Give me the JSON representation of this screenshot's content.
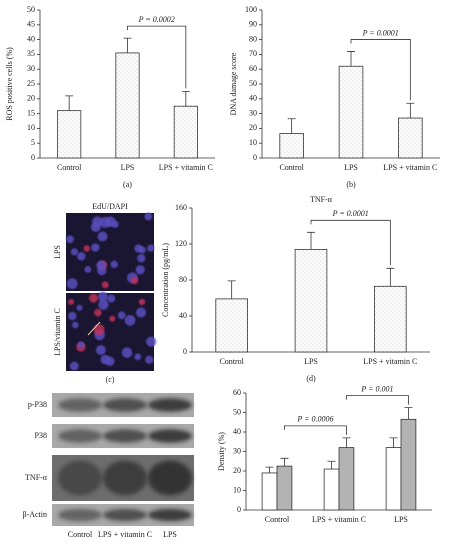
{
  "chart_data": [
    {
      "type": "bar",
      "caption": "(a)",
      "y_label": "ROS positive cells (%)",
      "categories": [
        "Control",
        "LPS",
        "LPS + vitamin C"
      ],
      "series": [
        {
          "color": "#ffffff",
          "fill_pattern": "dots",
          "values": [
            16,
            35.5,
            17.5
          ],
          "errors": [
            5,
            5,
            5
          ]
        }
      ],
      "ylim": [
        0,
        50
      ],
      "yticks": [
        0,
        5,
        10,
        15,
        20,
        25,
        30,
        35,
        40,
        45,
        50
      ],
      "annotations": [
        "P = 0.0002"
      ]
    },
    {
      "type": "bar",
      "caption": "(b)",
      "y_label": "DNA damage score",
      "categories": [
        "Control",
        "LPS",
        "LPS + vitamin C"
      ],
      "series": [
        {
          "color": "#ffffff",
          "fill_pattern": "dots",
          "values": [
            16.5,
            62,
            27
          ],
          "errors": [
            10,
            10,
            10
          ]
        }
      ],
      "ylim": [
        0,
        100
      ],
      "yticks": [
        0,
        10,
        20,
        30,
        40,
        50,
        60,
        70,
        80,
        90,
        100
      ],
      "annotations": [
        "P = 0.0001"
      ]
    },
    {
      "type": "bar",
      "caption": "(d)",
      "title": "TNF-α",
      "y_label": "Concentration (pg/mL)",
      "categories": [
        "Control",
        "LPS",
        "LPS + vitamin C"
      ],
      "series": [
        {
          "color": "#ffffff",
          "fill_pattern": "dots",
          "values": [
            59,
            114,
            73
          ],
          "errors": [
            20,
            19,
            20
          ]
        }
      ],
      "ylim": [
        0,
        160
      ],
      "yticks": [
        0,
        40,
        80,
        120,
        160
      ],
      "annotations": [
        "P = 0.0001"
      ]
    },
    {
      "type": "bar",
      "y_label": "Density (%)",
      "categories": [
        "Control",
        "LPS + vitamin C",
        "LPS"
      ],
      "series": [
        {
          "color": "#ffffff",
          "values": [
            19,
            21,
            32
          ],
          "errors": [
            3,
            4,
            5
          ]
        },
        {
          "color": "#b3b3b3",
          "values": [
            22.5,
            32,
            46.5
          ],
          "errors": [
            4,
            5,
            6
          ]
        }
      ],
      "ylim": [
        0,
        60
      ],
      "yticks": [
        0,
        10,
        20,
        30,
        40,
        50,
        60
      ],
      "annotations": [
        "P = 0.0006",
        "P = 0.001"
      ]
    }
  ],
  "micrograph": {
    "title": "EdU/DAPI",
    "rows": [
      "LPS",
      "LPS/vitamin C"
    ],
    "caption": "(c)"
  },
  "western_blot": {
    "rows": [
      "p-P38",
      "P38",
      "TNF-α",
      "β-Actin"
    ],
    "lanes": [
      "Control",
      "LPS + vitamin C",
      "LPS"
    ]
  }
}
